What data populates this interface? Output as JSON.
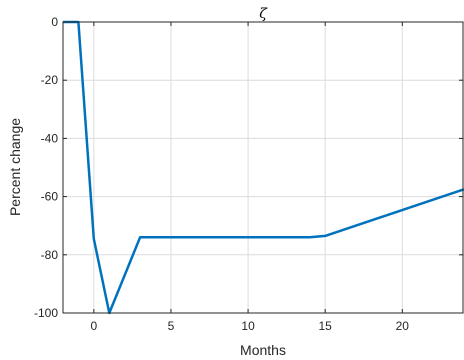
{
  "chart_data": {
    "type": "line",
    "title": "ζ",
    "xlabel": "Months",
    "ylabel": "Percent change",
    "xlim": [
      -2,
      24
    ],
    "ylim": [
      -100,
      0
    ],
    "xticks": [
      0,
      5,
      10,
      15,
      20
    ],
    "yticks": [
      0,
      -20,
      -40,
      -60,
      -80,
      -100
    ],
    "grid": true,
    "line_color": "#0072BD",
    "series": [
      {
        "x": [
          -2,
          -1,
          0,
          1,
          3,
          14,
          15,
          24
        ],
        "values": [
          0,
          0,
          -74.5,
          -100,
          -74,
          -74,
          -73.5,
          -57.5
        ]
      }
    ]
  }
}
